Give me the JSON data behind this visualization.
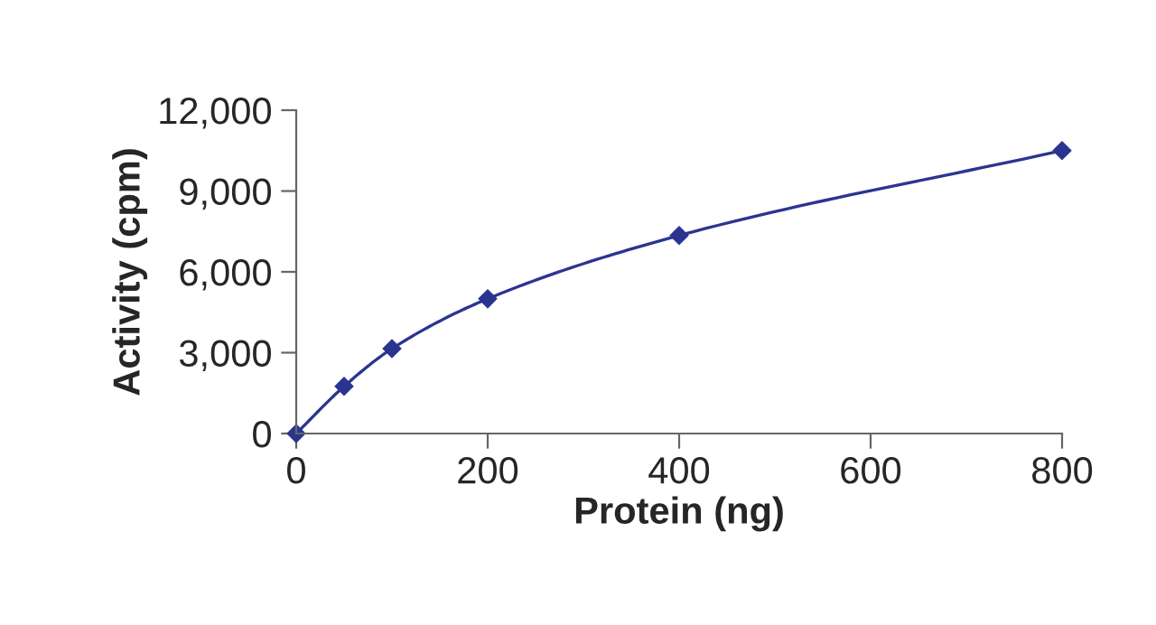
{
  "chart_data": {
    "type": "line",
    "xlabel": "Protein (ng)",
    "ylabel": "Activity (cpm)",
    "x": [
      0,
      50,
      100,
      200,
      400,
      800
    ],
    "series": [
      {
        "color": "#2b3590",
        "values": [
          0,
          1750,
          3150,
          5000,
          7350,
          10500
        ]
      }
    ],
    "xlim": [
      0,
      800
    ],
    "xticks": [
      0,
      200,
      400,
      600,
      800
    ],
    "ylim": [
      0,
      12000
    ],
    "yticks": [
      {
        "value": 0,
        "label": "0"
      },
      {
        "value": 3000,
        "label": "3,000"
      },
      {
        "value": 6000,
        "label": "6,000"
      },
      {
        "value": 9000,
        "label": "9,000"
      },
      {
        "value": 12000,
        "label": "12,000"
      }
    ],
    "marker": "diamond",
    "line_style": "solid",
    "grid": false,
    "legend": false
  }
}
